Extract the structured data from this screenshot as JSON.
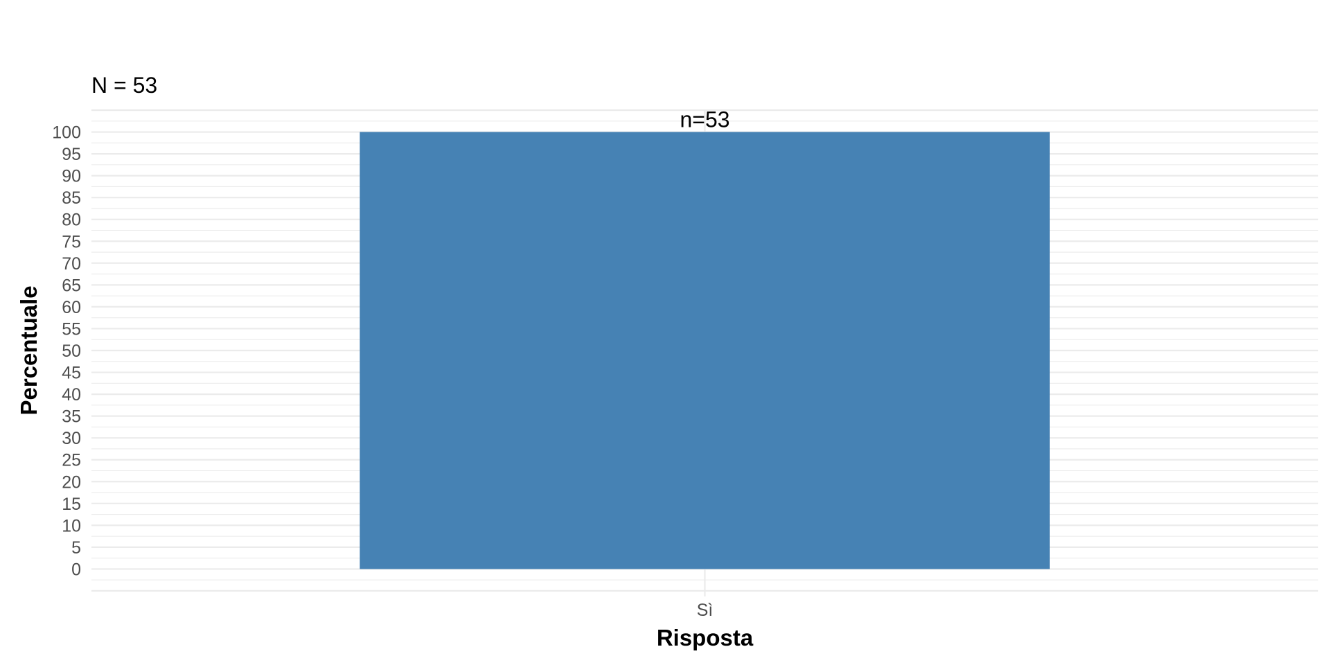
{
  "chart_data": {
    "type": "bar",
    "title": "",
    "subtitle": "N = 53",
    "xlabel": "Risposta",
    "ylabel": "Percentuale",
    "categories": [
      "Sì"
    ],
    "values": [
      100
    ],
    "data_labels": [
      "n=53"
    ],
    "ylim": [
      -5,
      105
    ],
    "y_ticks": [
      0,
      5,
      10,
      15,
      20,
      25,
      30,
      35,
      40,
      45,
      50,
      55,
      60,
      65,
      70,
      75,
      80,
      85,
      90,
      95,
      100
    ],
    "grid": true,
    "legend": "none",
    "bar_color": "#4682B4",
    "gridline_color": "#EBEBEB"
  }
}
